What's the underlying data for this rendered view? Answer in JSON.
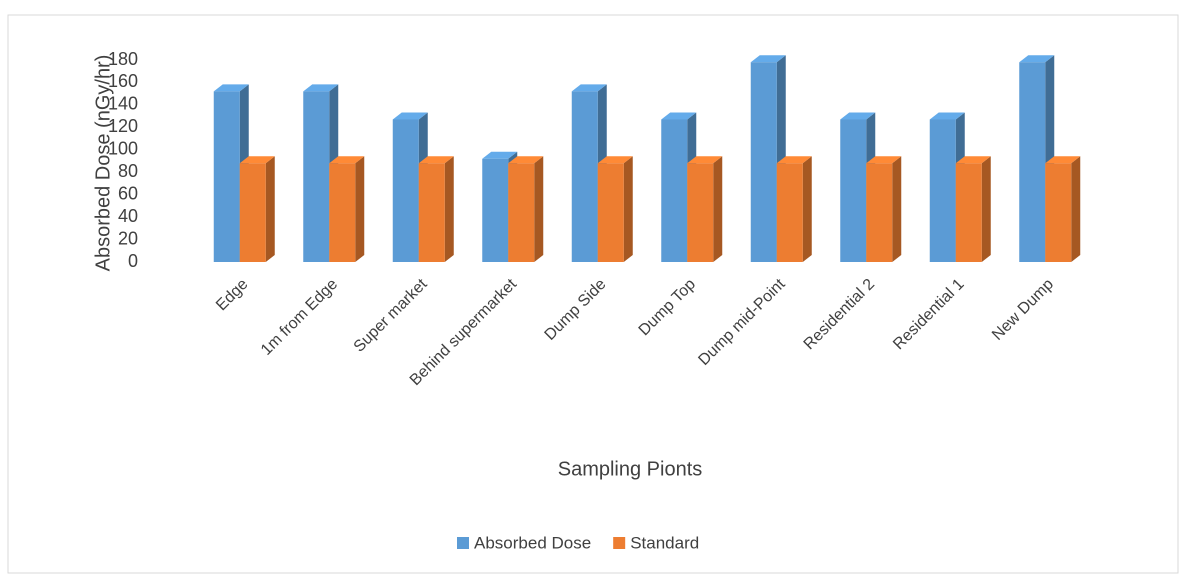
{
  "chart_data": {
    "type": "bar3d",
    "y_label": "Absorbed Dose (nGy/hr)",
    "x_label": "Sampling Pionts",
    "categories": [
      "Edge",
      "1m from Edge",
      "Super market",
      "Behind supermarket",
      "Dump Side",
      "Dump Top",
      "Dump mid-Point",
      "Residential 2",
      "Residential 1",
      "New Dump"
    ],
    "series": [
      {
        "name": "Absorbed Dose",
        "color": "#5b9bd5",
        "values": [
          152,
          152,
          127,
          92,
          152,
          127,
          178,
          127,
          127,
          178
        ]
      },
      {
        "name": "Standard",
        "color": "#ed7d31",
        "values": [
          88,
          88,
          88,
          88,
          88,
          88,
          88,
          88,
          88,
          88
        ]
      }
    ],
    "ylim": [
      0,
      180
    ],
    "yticks": [
      0,
      20,
      40,
      60,
      80,
      100,
      120,
      140,
      160,
      180
    ],
    "legend": "bottom"
  }
}
